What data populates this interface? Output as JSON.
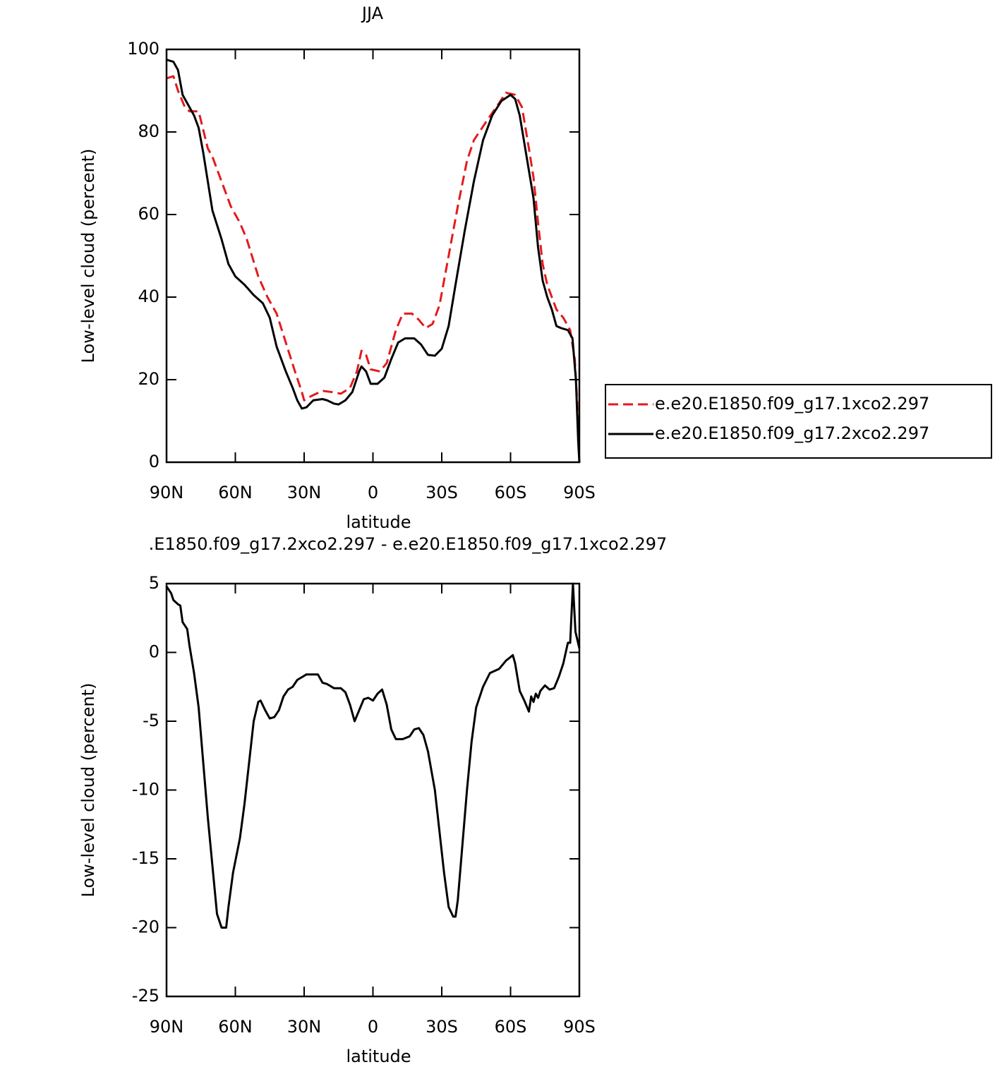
{
  "chart_data": [
    {
      "type": "line",
      "title": "JJA",
      "xlabel": "latitude",
      "ylabel": "Low-level cloud (percent)",
      "xlim": [
        90,
        -90
      ],
      "xticks": [
        {
          "value": 90,
          "label": "90N"
        },
        {
          "value": 60,
          "label": "60N"
        },
        {
          "value": 30,
          "label": "30N"
        },
        0,
        {
          "value": -30,
          "label": "30S"
        },
        {
          "value": -60,
          "label": "60S"
        },
        {
          "value": -90,
          "label": "90S"
        }
      ],
      "ylim": [
        0,
        100
      ],
      "yticks": [
        0,
        20,
        40,
        60,
        80,
        100
      ],
      "legend": "right",
      "series": [
        {
          "name": "e.e20.E1850.f09_g17.1xco2.297",
          "color": "#e41a1c",
          "dash": "dashed",
          "x": [
            90,
            87,
            85,
            82,
            80,
            76,
            72,
            70,
            66,
            62,
            58,
            55,
            50,
            46,
            42,
            38,
            34,
            31,
            30,
            27,
            22,
            18,
            14,
            10,
            7,
            5,
            3,
            1,
            -3,
            -6,
            -10,
            -13,
            -17,
            -20,
            -23,
            -26,
            -29,
            -33,
            -37,
            -41,
            -44,
            -50,
            -55,
            -58,
            -62,
            -65,
            -68,
            -70,
            -72,
            -74,
            -76,
            -78,
            -80,
            -83,
            -86,
            -88,
            -89,
            -90
          ],
          "values": [
            93,
            93.5,
            90,
            86,
            85,
            85,
            76,
            74,
            68,
            62,
            58,
            54,
            45,
            40,
            36,
            29,
            22,
            17,
            15,
            16,
            17.3,
            17,
            16.6,
            18,
            22,
            27,
            26,
            22.5,
            22,
            24,
            32,
            36,
            36,
            34.5,
            32.5,
            33.5,
            38,
            50,
            62,
            73,
            78,
            83,
            87,
            89.5,
            89,
            86,
            76,
            69,
            58,
            48,
            43,
            40,
            37,
            35,
            32,
            25,
            15,
            0
          ]
        },
        {
          "name": "e.e20.E1850.f09_g17.2xco2.297",
          "color": "#000000",
          "dash": "solid",
          "x": [
            90,
            87,
            85,
            83,
            80,
            78,
            76,
            74,
            72,
            70,
            66,
            63,
            60,
            56,
            52,
            48,
            45,
            42,
            38,
            35,
            33,
            31,
            29,
            26,
            22,
            20,
            17,
            15,
            12,
            9,
            6,
            5,
            3,
            1,
            -2,
            -5,
            -8,
            -11,
            -14,
            -18,
            -21,
            -24,
            -27,
            -30,
            -33,
            -36,
            -40,
            -44,
            -48,
            -52,
            -56,
            -60,
            -62,
            -64,
            -67,
            -70,
            -72,
            -74,
            -76,
            -78,
            -80,
            -82,
            -85,
            -87,
            -88.5,
            -89.5,
            -90
          ],
          "values": [
            97.5,
            97,
            95,
            89,
            86,
            84,
            81,
            75,
            68,
            61,
            54,
            48,
            45,
            43,
            40.5,
            38.5,
            35,
            28,
            22,
            18,
            15,
            13,
            13.3,
            15,
            15.3,
            15,
            14.2,
            14,
            15,
            17,
            22,
            23.2,
            22,
            19,
            19,
            20.5,
            25,
            29,
            30,
            30,
            28.5,
            26,
            25.8,
            27.5,
            33,
            43,
            56,
            68,
            78,
            84,
            87.5,
            89,
            88,
            84,
            74,
            64,
            52,
            44,
            40,
            37,
            33,
            32.5,
            32,
            30,
            20,
            5,
            0
          ]
        }
      ]
    },
    {
      "type": "line",
      "title": ".E1850.f09_g17.2xco2.297 - e.e20.E1850.f09_g17.1xco2.297",
      "xlabel": "latitude",
      "ylabel": "Low-level cloud (percent)",
      "xlim": [
        90,
        -90
      ],
      "xticks": [
        {
          "value": 90,
          "label": "90N"
        },
        {
          "value": 60,
          "label": "60N"
        },
        {
          "value": 30,
          "label": "30N"
        },
        0,
        {
          "value": -30,
          "label": "30S"
        },
        {
          "value": -60,
          "label": "60S"
        },
        {
          "value": -90,
          "label": "90S"
        }
      ],
      "ylim": [
        -25,
        5
      ],
      "yticks": [
        -25,
        -20,
        -15,
        -10,
        -5,
        0,
        5
      ],
      "series": [
        {
          "color": "#000000",
          "dash": "solid",
          "x": [
            90,
            88,
            87,
            85,
            84,
            83,
            81,
            80,
            78,
            76,
            74,
            72,
            70,
            68,
            66,
            64,
            63,
            61,
            58,
            56,
            54,
            52,
            50,
            49,
            47,
            45,
            43,
            41,
            39,
            37,
            35,
            33,
            31,
            29,
            27,
            24,
            22,
            20,
            17,
            14,
            12,
            10,
            8,
            6,
            4,
            2,
            0,
            -2,
            -4,
            -6,
            -8,
            -10,
            -13,
            -16,
            -18,
            -20,
            -22,
            -24,
            -27,
            -29,
            -31,
            -33,
            -35,
            -36,
            -37,
            -39,
            -41,
            -43,
            -45,
            -48,
            -51,
            -55,
            -58,
            -61,
            -62,
            -64,
            -66,
            -68,
            -69,
            -70,
            -71,
            -72,
            -73,
            -75,
            -77,
            -79,
            -81,
            -83,
            -85,
            -86,
            -87.2,
            -88.3,
            -90
          ],
          "values": [
            4.8,
            4.3,
            3.8,
            3.5,
            3.4,
            2.2,
            1.7,
            0.5,
            -1.5,
            -4,
            -8,
            -12,
            -15.5,
            -19,
            -20,
            -20,
            -18.5,
            -16,
            -13.5,
            -11,
            -8,
            -5,
            -3.6,
            -3.5,
            -4.2,
            -4.8,
            -4.7,
            -4.2,
            -3.2,
            -2.7,
            -2.5,
            -2,
            -1.8,
            -1.6,
            -1.6,
            -1.6,
            -2.2,
            -2.3,
            -2.6,
            -2.6,
            -2.9,
            -3.8,
            -5,
            -4.2,
            -3.4,
            -3.3,
            -3.5,
            -3,
            -2.7,
            -3.8,
            -5.6,
            -6.3,
            -6.3,
            -6.1,
            -5.6,
            -5.5,
            -6,
            -7.2,
            -10,
            -13,
            -16,
            -18.5,
            -19.2,
            -19.2,
            -18,
            -14,
            -10,
            -6.5,
            -4,
            -2.5,
            -1.5,
            -1.2,
            -0.6,
            -0.2,
            -0.8,
            -2.8,
            -3.5,
            -4.3,
            -3.2,
            -3.6,
            -3,
            -3.3,
            -2.8,
            -2.4,
            -2.7,
            -2.6,
            -1.8,
            -0.8,
            0.7,
            0.7,
            5,
            1.5,
            0.3
          ]
        }
      ]
    }
  ]
}
